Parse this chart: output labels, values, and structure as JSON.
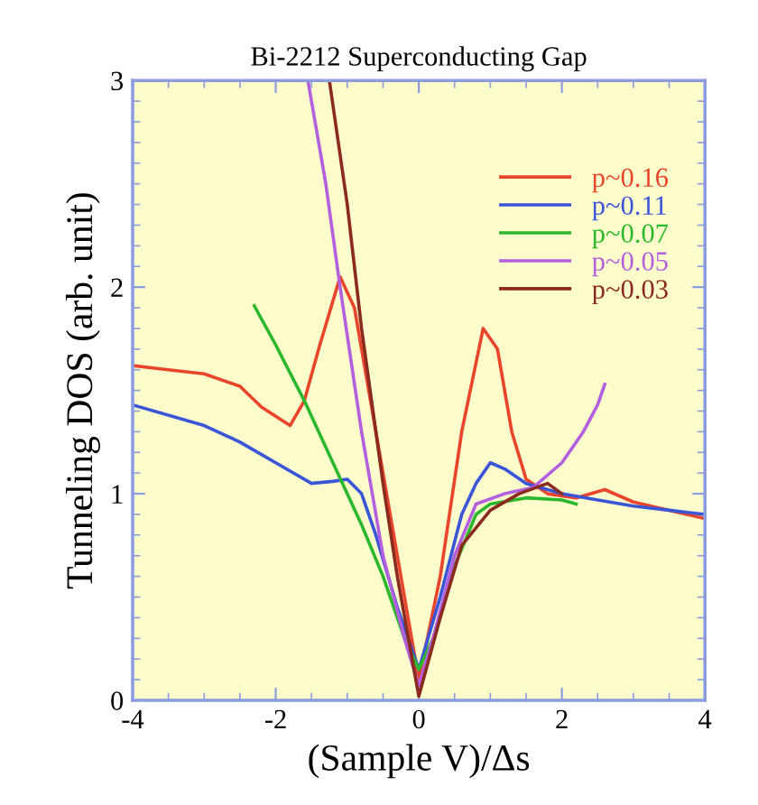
{
  "chart_data": {
    "type": "line",
    "title": "Bi-2212 Superconducting Gap",
    "xlabel": "(Sample V)/Δs",
    "ylabel": "Tunneling DOS (arb. unit)",
    "xlim": [
      -4,
      4
    ],
    "ylim": [
      0,
      3
    ],
    "xticks": [
      -4,
      -2,
      0,
      2,
      4
    ],
    "yticks": [
      0,
      1,
      2,
      3
    ],
    "grid": false,
    "legend": "top right",
    "marker": "none",
    "line_style": "solid",
    "series": [
      {
        "name": "p~0.16",
        "color": "#e8452c",
        "x": [
          -4,
          -3.5,
          -3,
          -2.5,
          -2.2,
          -1.8,
          -1.6,
          -1.4,
          -1.1,
          -0.9,
          -0.6,
          -0.3,
          0,
          0.3,
          0.6,
          0.9,
          1.1,
          1.3,
          1.5,
          1.8,
          2.2,
          2.6,
          3,
          3.5,
          4
        ],
        "values": [
          1.62,
          1.6,
          1.58,
          1.52,
          1.42,
          1.33,
          1.45,
          1.7,
          2.05,
          1.9,
          1.3,
          0.7,
          0.1,
          0.6,
          1.3,
          1.8,
          1.7,
          1.3,
          1.07,
          1.0,
          0.98,
          1.02,
          0.96,
          0.92,
          0.88
        ]
      },
      {
        "name": "p~0.11",
        "color": "#3a55d8",
        "x": [
          -4,
          -3,
          -2.5,
          -2,
          -1.5,
          -1.2,
          -1,
          -0.8,
          -0.6,
          -0.3,
          0,
          0.3,
          0.6,
          0.8,
          1,
          1.2,
          1.5,
          2,
          2.5,
          3,
          3.5,
          4
        ],
        "values": [
          1.43,
          1.33,
          1.25,
          1.15,
          1.05,
          1.06,
          1.07,
          1.0,
          0.8,
          0.45,
          0.15,
          0.5,
          0.9,
          1.05,
          1.15,
          1.12,
          1.05,
          1.0,
          0.97,
          0.94,
          0.92,
          0.9
        ]
      },
      {
        "name": "p~0.07",
        "color": "#2cb82c",
        "x": [
          -2.3,
          -2,
          -1.6,
          -1.2,
          -0.8,
          -0.5,
          -0.2,
          0,
          0.2,
          0.5,
          0.8,
          1.0,
          1.5,
          2,
          2.2
        ],
        "values": [
          1.91,
          1.72,
          1.45,
          1.15,
          0.85,
          0.6,
          0.3,
          0.15,
          0.3,
          0.65,
          0.9,
          0.95,
          0.98,
          0.97,
          0.95
        ]
      },
      {
        "name": "p~0.05",
        "color": "#b45ee0",
        "x": [
          -1.55,
          -1.3,
          -1.1,
          -0.8,
          -0.5,
          -0.2,
          0,
          0.2,
          0.5,
          0.8,
          1.2,
          1.6,
          2,
          2.3,
          2.5,
          2.6
        ],
        "values": [
          3.0,
          2.5,
          2.0,
          1.3,
          0.7,
          0.3,
          0.07,
          0.3,
          0.7,
          0.95,
          1.0,
          1.03,
          1.15,
          1.3,
          1.43,
          1.53
        ]
      },
      {
        "name": "p~0.03",
        "color": "#8b2a1e",
        "x": [
          -1.25,
          -1.0,
          -0.8,
          -0.5,
          -0.3,
          0,
          0.3,
          0.6,
          1,
          1.4,
          1.8,
          2
        ],
        "values": [
          3.0,
          2.4,
          1.8,
          1.05,
          0.6,
          0.02,
          0.4,
          0.75,
          0.92,
          1.0,
          1.05,
          1.0
        ]
      }
    ]
  }
}
